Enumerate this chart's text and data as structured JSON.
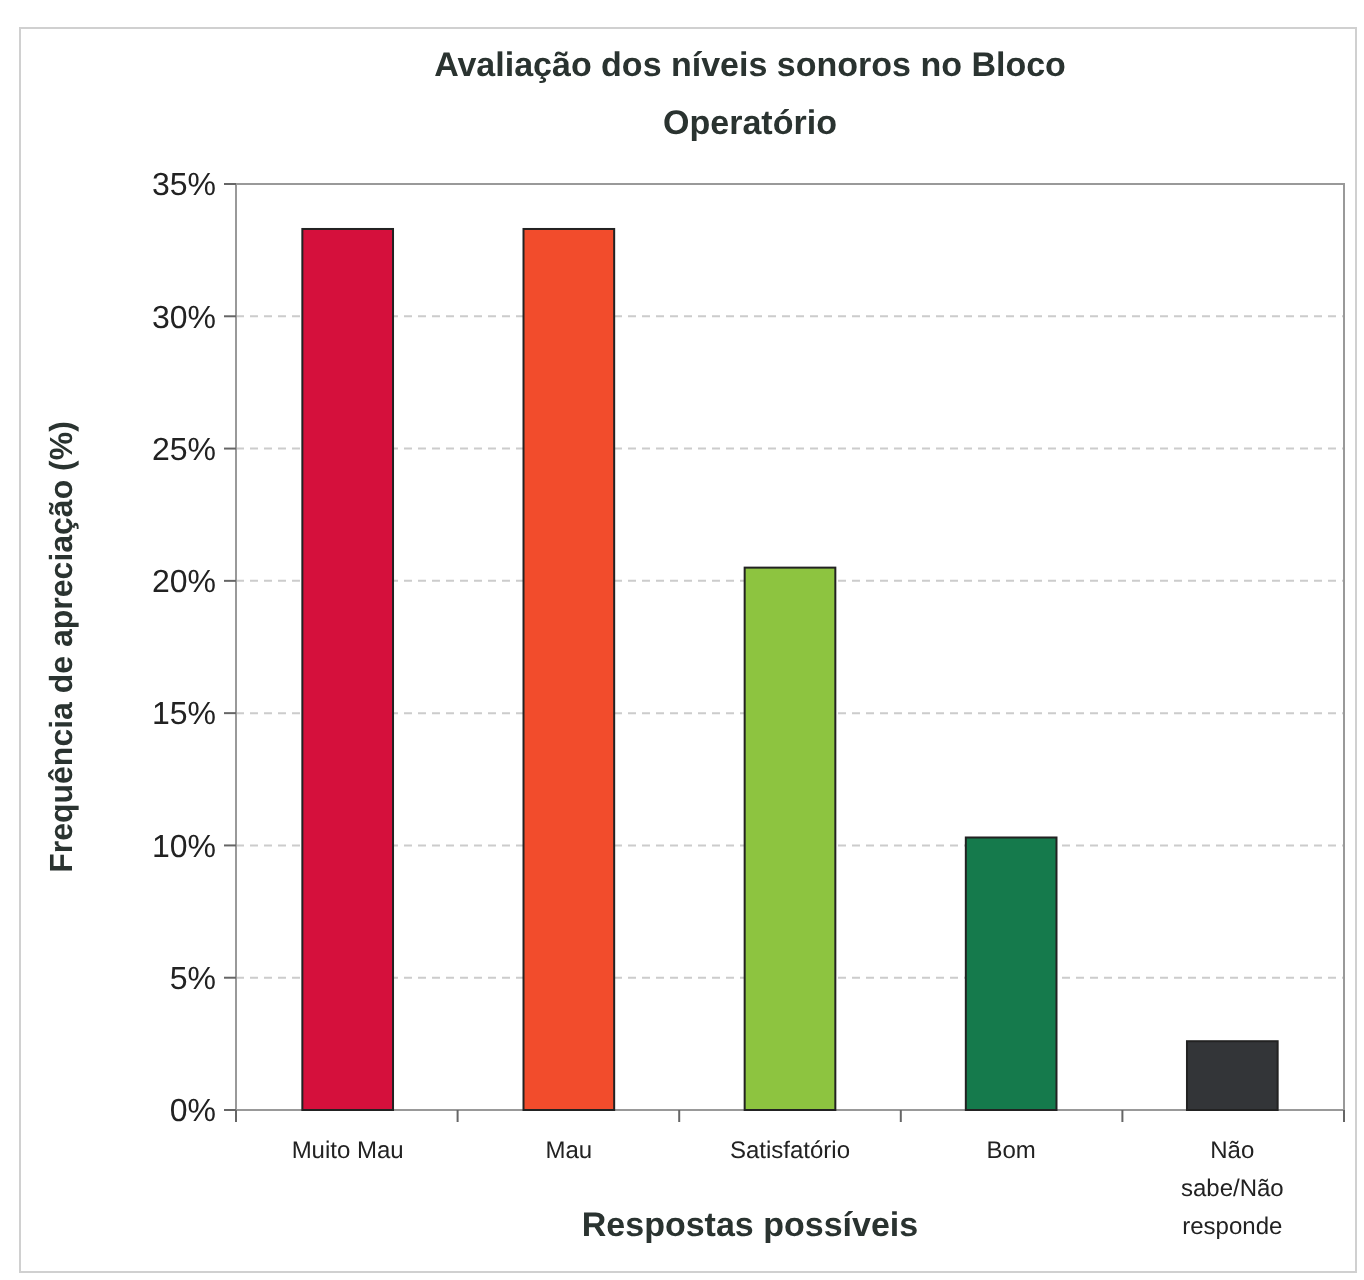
{
  "chart_data": {
    "type": "bar",
    "title": "Avaliação dos níveis sonoros no Bloco Operatório",
    "xlabel": "Respostas possíveis",
    "ylabel": "Frequência de apreciação (%)",
    "categories": [
      "Muito Mau",
      "Mau",
      "Satisfatório",
      "Bom",
      "Não sabe/Não responde"
    ],
    "values": [
      33.3,
      33.3,
      20.5,
      10.3,
      2.6
    ],
    "colors": [
      "#d5103c",
      "#f24c2c",
      "#8dc440",
      "#157a4c",
      "#333538"
    ],
    "ylim": [
      0,
      35
    ],
    "yticks": [
      {
        "value": 0,
        "label": "0%"
      },
      {
        "value": 5,
        "label": "5%"
      },
      {
        "value": 10,
        "label": "10%"
      },
      {
        "value": 15,
        "label": "15%"
      },
      {
        "value": 20,
        "label": "20%"
      },
      {
        "value": 25,
        "label": "25%"
      },
      {
        "value": 30,
        "label": "30%"
      },
      {
        "value": 35,
        "label": "35%"
      }
    ],
    "grid": "y"
  }
}
